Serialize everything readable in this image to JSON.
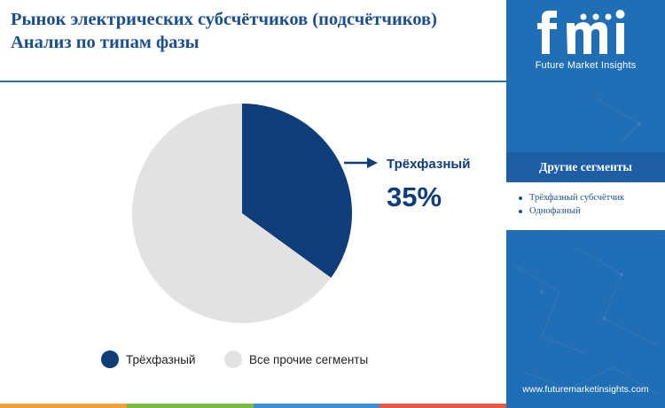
{
  "header": {
    "title_line1": "Рынок электрических субсчётчиков (подсчётчиков)",
    "title_line2": "Анализ по типам фазы"
  },
  "colors": {
    "accent": "#1b4f8c",
    "three_phase": "#0e3d7a",
    "others": "#e2e2e2",
    "side_panel": "#1f6eb6",
    "bottom_strip": [
      "#f0a23a",
      "#7dbb42",
      "#3f8fd2",
      "#e45a4a"
    ]
  },
  "chart_data": {
    "type": "pie",
    "slices": [
      {
        "name": "Трёхфазный",
        "value": 35,
        "color": "#0e3d7a"
      },
      {
        "name": "Все прочие сегменты",
        "value": 65,
        "color": "#e2e2e2"
      }
    ],
    "callout": {
      "label": "Трёхфазный",
      "value_text": "35%"
    },
    "legend_position": "bottom"
  },
  "sidebar": {
    "logo_text": "fmi",
    "logo_subtitle": "Future Market Insights",
    "segments_title": "Другие сегменты",
    "segments": [
      "Трёхфазный субсчётчик",
      "Однофазный"
    ],
    "url": "www.futuremarketinsights.com"
  }
}
